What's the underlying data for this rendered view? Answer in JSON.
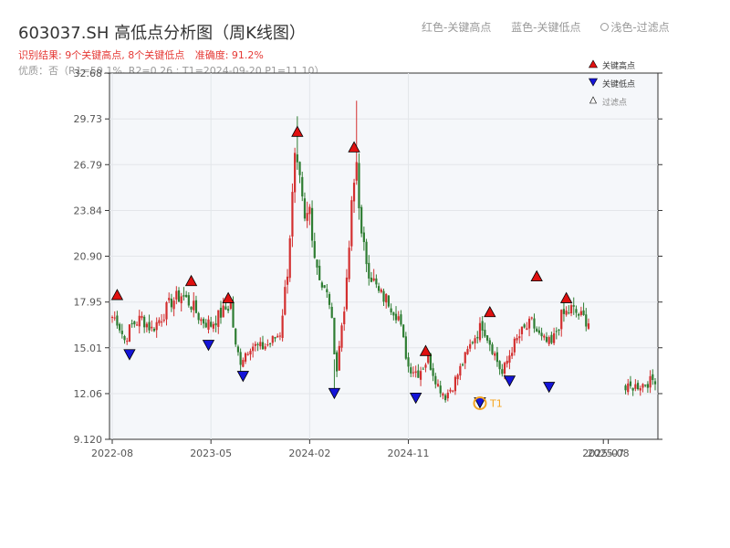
{
  "header": {
    "title": "603037.SH 高低点分析图（周K线图）",
    "result_label": "识别结果: 9个关键高点, 8个关键低点",
    "accuracy_label": "准确度: 91.2%",
    "sub_label": "优质：否（R1=50.1%, R2=0.26 ; T1=2024-09-20 P1=11.10）",
    "legend_red": "红色-关键高点",
    "legend_blue": "蓝色-关键低点",
    "legend_light": "浅色-过滤点"
  },
  "chart_data": {
    "type": "candlestick",
    "y_ticks": [
      "9.120",
      "12.06",
      "15.01",
      "17.95",
      "20.90",
      "23.84",
      "26.79",
      "29.73",
      "32.68"
    ],
    "x_ticks": [
      "2022-08",
      "2023-05",
      "2024-02",
      "2024-11",
      "2025-07",
      "2025-08"
    ],
    "ylim": [
      9.12,
      32.68
    ],
    "legend": [
      "关键高点",
      "关键低点",
      "过滤点"
    ],
    "t1_label": "T1",
    "colors": {
      "up": "#d32f2f",
      "down": "#2e7d32",
      "high": "#e01010",
      "low": "#1414d8",
      "t1": "#f5a623"
    },
    "anchors": [
      [
        0,
        17
      ],
      [
        2,
        16.8
      ],
      [
        5,
        15.5
      ],
      [
        8,
        16.5
      ],
      [
        12,
        16.9
      ],
      [
        16,
        16.2
      ],
      [
        20,
        17
      ],
      [
        24,
        18
      ],
      [
        28,
        18.4
      ],
      [
        32,
        17.8
      ],
      [
        36,
        16.8
      ],
      [
        40,
        16.5
      ],
      [
        44,
        17.2
      ],
      [
        48,
        17.8
      ],
      [
        50,
        15
      ],
      [
        52,
        14.2
      ],
      [
        56,
        15.2
      ],
      [
        60,
        15
      ],
      [
        64,
        15.3
      ],
      [
        68,
        16
      ],
      [
        71,
        20
      ],
      [
        74,
        27
      ],
      [
        76,
        25.5
      ],
      [
        78,
        23
      ],
      [
        80,
        24
      ],
      [
        82,
        21
      ],
      [
        85,
        19
      ],
      [
        88,
        18
      ],
      [
        90,
        15
      ],
      [
        91,
        13.6
      ],
      [
        93,
        16.5
      ],
      [
        95,
        19
      ],
      [
        97,
        24
      ],
      [
        99,
        27
      ],
      [
        101,
        22
      ],
      [
        104,
        20
      ],
      [
        108,
        18.5
      ],
      [
        112,
        18
      ],
      [
        116,
        17
      ],
      [
        120,
        13.8
      ],
      [
        124,
        13.4
      ],
      [
        128,
        14.3
      ],
      [
        132,
        12.6
      ],
      [
        135,
        11.9
      ],
      [
        138,
        12.6
      ],
      [
        142,
        14
      ],
      [
        146,
        15.5
      ],
      [
        150,
        16.5
      ],
      [
        154,
        15
      ],
      [
        158,
        13.3
      ],
      [
        162,
        15
      ],
      [
        166,
        16
      ],
      [
        170,
        16.6
      ],
      [
        174,
        15.5
      ],
      [
        178,
        15.2
      ],
      [
        182,
        17
      ],
      [
        186,
        17.5
      ],
      [
        190,
        17
      ],
      [
        193,
        16.7
      ]
    ],
    "gap_after": 193,
    "tail": [
      [
        208,
        12.3
      ],
      [
        211,
        12.5
      ],
      [
        216,
        12.7
      ],
      [
        220,
        13
      ]
    ],
    "bars": 221,
    "wicks": [
      [
        75,
        29.9
      ],
      [
        99,
        30.9
      ],
      [
        76,
        27
      ],
      [
        90,
        12.4
      ]
    ],
    "highs": [
      [
        2,
        18.4
      ],
      [
        32,
        19.3
      ],
      [
        47,
        18.2
      ],
      [
        75,
        28.9
      ],
      [
        98,
        27.9
      ],
      [
        127,
        14.8
      ],
      [
        153,
        17.3
      ],
      [
        172,
        19.6
      ],
      [
        184,
        18.2
      ]
    ],
    "lows": [
      [
        7,
        14.6
      ],
      [
        39,
        15.2
      ],
      [
        53,
        13.2
      ],
      [
        90,
        12.1
      ],
      [
        123,
        11.8
      ],
      [
        149,
        11.5
      ],
      [
        161,
        12.9
      ],
      [
        177,
        12.5
      ]
    ]
  }
}
